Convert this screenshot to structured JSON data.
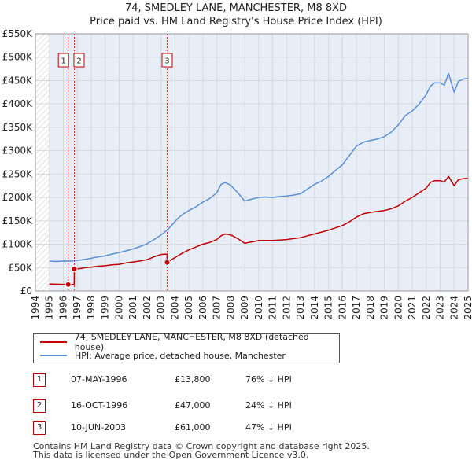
{
  "header": {
    "title": "74, SMEDLEY LANE, MANCHESTER, M8 8XD",
    "subtitle": "Price paid vs. HM Land Registry's House Price Index (HPI)"
  },
  "colors": {
    "property": "#c00000",
    "hpi": "#5a8fd6",
    "shade": "#e8eef8",
    "grid": "#d8d8d8"
  },
  "chart_data": {
    "type": "line",
    "title": "Price paid vs. HM Land Registry's House Price Index (HPI)",
    "xlim": [
      1994,
      2025
    ],
    "ylim": [
      0,
      550000
    ],
    "x_ticks": [
      "1994",
      "1995",
      "1996",
      "1997",
      "1998",
      "1999",
      "2000",
      "2001",
      "2002",
      "2003",
      "2004",
      "2005",
      "2006",
      "2007",
      "2008",
      "2009",
      "2010",
      "2011",
      "2012",
      "2013",
      "2014",
      "2015",
      "2016",
      "2017",
      "2018",
      "2019",
      "2020",
      "2021",
      "2022",
      "2023",
      "2024",
      "2025"
    ],
    "y_ticks": [
      {
        "value": 0,
        "label": "£0"
      },
      {
        "value": 50000,
        "label": "£50K"
      },
      {
        "value": 100000,
        "label": "£100K"
      },
      {
        "value": 150000,
        "label": "£150K"
      },
      {
        "value": 200000,
        "label": "£200K"
      },
      {
        "value": 250000,
        "label": "£250K"
      },
      {
        "value": 300000,
        "label": "£300K"
      },
      {
        "value": 350000,
        "label": "£350K"
      },
      {
        "value": 400000,
        "label": "£400K"
      },
      {
        "value": 450000,
        "label": "£450K"
      },
      {
        "value": 500000,
        "label": "£500K"
      },
      {
        "value": 550000,
        "label": "£550K"
      }
    ],
    "series": [
      {
        "name": "HPI: Average price, detached house, Manchester",
        "x": [
          1995.0,
          1995.5,
          1996.0,
          1996.4,
          1996.8,
          1997.2,
          1997.6,
          1998.0,
          1998.5,
          1999.0,
          1999.5,
          2000.0,
          2000.5,
          2001.0,
          2001.5,
          2002.0,
          2002.5,
          2003.0,
          2003.44,
          2003.8,
          2004.2,
          2004.6,
          2005.0,
          2005.5,
          2006.0,
          2006.5,
          2007.0,
          2007.3,
          2007.6,
          2008.0,
          2008.5,
          2009.0,
          2009.3,
          2009.7,
          2010.0,
          2010.5,
          2011.0,
          2011.5,
          2012.0,
          2012.5,
          2013.0,
          2013.5,
          2014.0,
          2014.5,
          2015.0,
          2015.5,
          2016.0,
          2016.5,
          2017.0,
          2017.5,
          2018.0,
          2018.5,
          2019.0,
          2019.5,
          2020.0,
          2020.5,
          2021.0,
          2021.5,
          2022.0,
          2022.3,
          2022.6,
          2023.0,
          2023.3,
          2023.6,
          2024.0,
          2024.3,
          2024.6,
          2025.0
        ],
        "values": [
          64000,
          63000,
          64000,
          63500,
          65000,
          66000,
          68000,
          70000,
          73000,
          75000,
          79000,
          82000,
          86000,
          90000,
          95000,
          101000,
          110000,
          120000,
          130000,
          142000,
          155000,
          165000,
          172000,
          180000,
          190000,
          198000,
          210000,
          228000,
          232000,
          226000,
          210000,
          192000,
          195000,
          198000,
          200000,
          201000,
          200000,
          202000,
          203000,
          205000,
          208000,
          218000,
          228000,
          235000,
          245000,
          258000,
          270000,
          290000,
          310000,
          318000,
          322000,
          325000,
          330000,
          340000,
          355000,
          375000,
          385000,
          400000,
          420000,
          438000,
          445000,
          445000,
          440000,
          465000,
          425000,
          448000,
          453000,
          455000
        ]
      },
      {
        "name": "74, SMEDLEY LANE, MANCHESTER, M8 8XD (detached house)",
        "x": [
          1995.0,
          1995.5,
          1996.0,
          1996.35,
          1996.36,
          1996.78,
          1996.79,
          1997.2,
          1997.6,
          1998.0,
          1998.5,
          1999.0,
          1999.5,
          2000.0,
          2000.5,
          2001.0,
          2001.5,
          2002.0,
          2002.5,
          2003.0,
          2003.43,
          2003.44,
          2003.8,
          2004.2,
          2004.6,
          2005.0,
          2005.5,
          2006.0,
          2006.5,
          2007.0,
          2007.3,
          2007.6,
          2008.0,
          2008.5,
          2009.0,
          2009.3,
          2009.7,
          2010.0,
          2010.5,
          2011.0,
          2011.5,
          2012.0,
          2012.5,
          2013.0,
          2013.5,
          2014.0,
          2014.5,
          2015.0,
          2015.5,
          2016.0,
          2016.5,
          2017.0,
          2017.5,
          2018.0,
          2018.5,
          2019.0,
          2019.5,
          2020.0,
          2020.5,
          2021.0,
          2021.5,
          2022.0,
          2022.3,
          2022.6,
          2023.0,
          2023.3,
          2023.6,
          2024.0,
          2024.3,
          2024.6,
          2025.0
        ],
        "values": [
          15000,
          14500,
          14200,
          13800,
          14000,
          14200,
          47000,
          48000,
          50000,
          51000,
          53000,
          54000,
          56000,
          57000,
          60000,
          62000,
          64000,
          67000,
          73000,
          78000,
          79000,
          61000,
          68000,
          75000,
          82000,
          88000,
          94000,
          100000,
          104000,
          110000,
          118000,
          122000,
          120000,
          112000,
          102000,
          104000,
          106000,
          108000,
          108000,
          108000,
          109000,
          110000,
          112000,
          114000,
          118000,
          122000,
          126000,
          130000,
          135000,
          140000,
          148000,
          158000,
          165000,
          168000,
          170000,
          172000,
          176000,
          182000,
          192000,
          200000,
          210000,
          220000,
          232000,
          236000,
          236000,
          233000,
          245000,
          225000,
          238000,
          240000,
          241000
        ]
      }
    ],
    "sales": [
      {
        "id": "1",
        "x": 1996.35,
        "price": 13800
      },
      {
        "id": "2",
        "x": 1996.79,
        "price": 47000
      },
      {
        "id": "3",
        "x": 2003.44,
        "price": 61000
      }
    ],
    "shaded_range": [
      1995.0,
      2024.95
    ],
    "hatched_ranges": [
      [
        1994.0,
        1995.0
      ],
      [
        2024.95,
        2025.0
      ]
    ]
  },
  "legend": {
    "property_label": "74, SMEDLEY LANE, MANCHESTER, M8 8XD (detached house)",
    "hpi_label": "HPI: Average price, detached house, Manchester"
  },
  "transactions": [
    {
      "id": "1",
      "date": "07-MAY-1996",
      "price": "£13,800",
      "hpi": "76% ↓ HPI"
    },
    {
      "id": "2",
      "date": "16-OCT-1996",
      "price": "£47,000",
      "hpi": "24% ↓ HPI"
    },
    {
      "id": "3",
      "date": "10-JUN-2003",
      "price": "£61,000",
      "hpi": "47% ↓ HPI"
    }
  ],
  "footer": {
    "line1": "Contains HM Land Registry data © Crown copyright and database right 2025.",
    "line2": "This data is licensed under the Open Government Licence v3.0."
  }
}
